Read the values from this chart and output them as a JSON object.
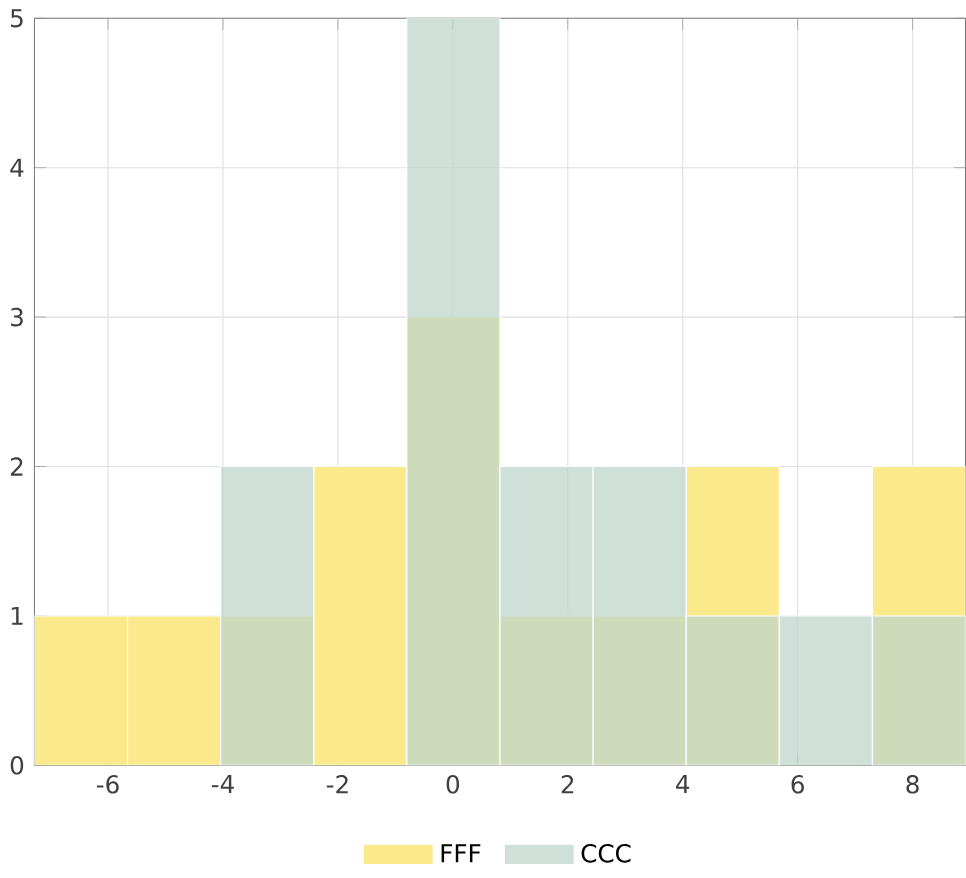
{
  "chart_data": {
    "type": "histogram",
    "bins": [
      -7.28,
      -5.66,
      -4.04,
      -2.42,
      -0.8,
      0.82,
      2.44,
      4.06,
      5.68,
      7.3,
      8.92
    ],
    "series": [
      {
        "name": "FFF",
        "color": "#fbea8c",
        "values": [
          1,
          1,
          1,
          2,
          3,
          1,
          1,
          2,
          0,
          2
        ]
      },
      {
        "name": "CCC",
        "color": "#bdd5ca",
        "values": [
          0,
          0,
          2,
          0,
          5,
          2,
          2,
          1,
          1,
          1
        ]
      }
    ],
    "xlim": [
      -7.28,
      8.92
    ],
    "ylim": [
      0,
      5
    ],
    "xticks": [
      -6,
      -4,
      -2,
      0,
      2,
      4,
      6,
      8
    ],
    "yticks": [
      0,
      1,
      2,
      3,
      4,
      5
    ],
    "grid": true,
    "legend": "bottom"
  }
}
